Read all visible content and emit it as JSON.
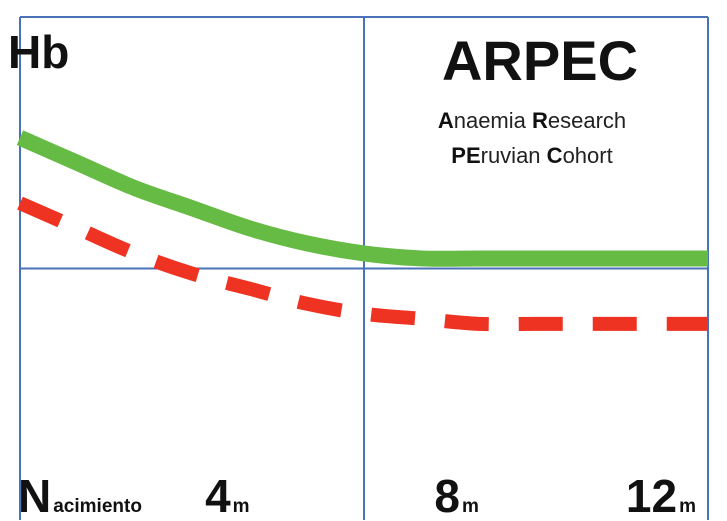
{
  "chart_data": {
    "type": "line",
    "title": "ARPEC",
    "subtitle_parts": [
      [
        {
          "text": "A",
          "cap": true
        },
        {
          "text": "naemia ",
          "cap": false
        },
        {
          "text": "R",
          "cap": true
        },
        {
          "text": "esearch",
          "cap": false
        }
      ],
      [
        {
          "text": "PE",
          "cap": true
        },
        {
          "text": "ruvian ",
          "cap": false
        },
        {
          "text": "C",
          "cap": true
        },
        {
          "text": "ohort",
          "cap": false
        }
      ]
    ],
    "ylabel": "Hb",
    "xlim": [
      0,
      12
    ],
    "ylim": [
      0,
      10
    ],
    "x_ticks": [
      {
        "x": 0,
        "big": "N",
        "small": "acimiento"
      },
      {
        "x": 4,
        "big": "4",
        "small": "m"
      },
      {
        "x": 8,
        "big": "8",
        "small": "m"
      },
      {
        "x": 12,
        "big": "12",
        "small": "m"
      }
    ],
    "grid": {
      "x": [
        6
      ],
      "y": [
        5
      ],
      "frame": true
    },
    "series": [
      {
        "style": "solid",
        "color": "#66bb44",
        "x": [
          0,
          1,
          2,
          3,
          4,
          5,
          6,
          7,
          8,
          9,
          10,
          11,
          12
        ],
        "y": [
          7.6,
          7.1,
          6.6,
          6.2,
          5.8,
          5.5,
          5.3,
          5.2,
          5.2,
          5.2,
          5.2,
          5.2,
          5.2
        ]
      },
      {
        "style": "dashed",
        "color": "#ee3322",
        "x": [
          0,
          1,
          2,
          3,
          4,
          5,
          6,
          7,
          8,
          9,
          10,
          11,
          12
        ],
        "y": [
          6.3,
          5.8,
          5.3,
          4.9,
          4.6,
          4.3,
          4.1,
          4.0,
          3.9,
          3.9,
          3.9,
          3.9,
          3.9
        ]
      }
    ]
  }
}
